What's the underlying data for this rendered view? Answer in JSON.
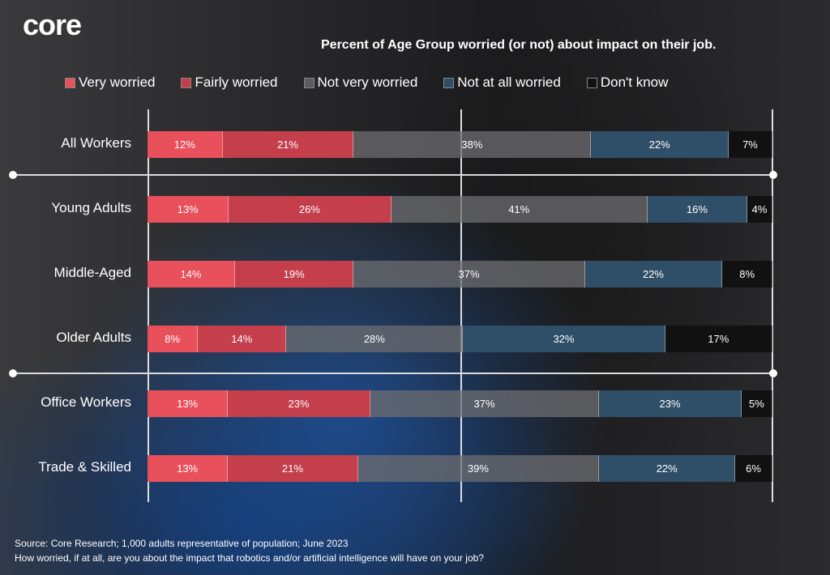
{
  "logo": "core",
  "chart_data": {
    "type": "bar",
    "orientation": "horizontal-stacked-100",
    "title": "Percent of Age Group worried (or not) about impact on their job.",
    "categories": [
      "All Workers",
      "Young Adults",
      "Middle-Aged",
      "Older Adults",
      "Office Workers",
      "Trade & Skilled"
    ],
    "series": [
      {
        "name": "Very worried",
        "color": "#e8505b",
        "values": [
          12,
          13,
          14,
          8,
          13,
          13
        ]
      },
      {
        "name": "Fairly worried",
        "color": "#c43e4c",
        "values": [
          21,
          26,
          19,
          14,
          23,
          21
        ]
      },
      {
        "name": "Not very worried",
        "color": "#5c5c5e",
        "values": [
          38,
          41,
          37,
          28,
          37,
          39
        ]
      },
      {
        "name": "Not at all worried",
        "color": "#2f4e68",
        "values": [
          22,
          16,
          22,
          32,
          23,
          22
        ]
      },
      {
        "name": "Don't know",
        "color": "#111111",
        "values": [
          7,
          4,
          8,
          17,
          5,
          6
        ]
      }
    ],
    "value_suffix": "%",
    "xlim": [
      0,
      100
    ]
  },
  "footer": {
    "source": "Source: Core Research;  1,000 adults representative of population; June 2023",
    "question": "How worried, if at all, are you about the impact that robotics and/or artificial intelligence will have on your job?"
  }
}
